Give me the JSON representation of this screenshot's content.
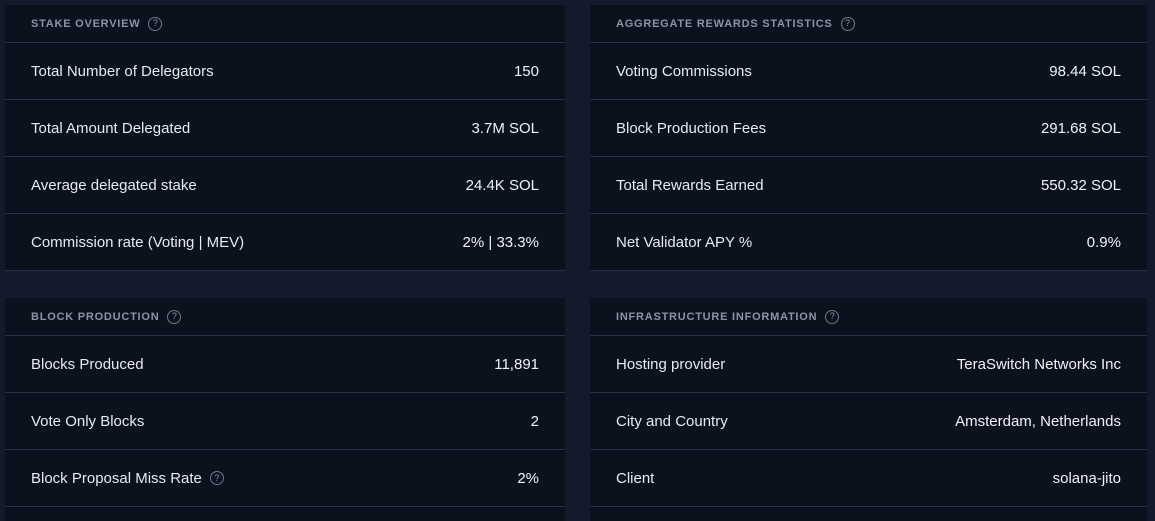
{
  "colors": {
    "page_background": "#141a2b",
    "panel_background": "#0c111e",
    "divider": "#273044",
    "header_text": "#8b94a7",
    "label_text": "#e7eaf0",
    "value_text": "#f0f2f7"
  },
  "icons": {
    "help": "?"
  },
  "panels": [
    {
      "title": "Stake Overview",
      "rows": [
        {
          "label": "Total Number of Delegators",
          "value": "150"
        },
        {
          "label": "Total Amount Delegated",
          "value": "3.7M SOL"
        },
        {
          "label": "Average delegated stake",
          "value": "24.4K SOL"
        },
        {
          "label": "Commission rate (Voting | MEV)",
          "value": "2% | 33.3%"
        }
      ]
    },
    {
      "title": "Aggregate Rewards Statistics",
      "rows": [
        {
          "label": "Voting Commissions",
          "value": "98.44 SOL"
        },
        {
          "label": "Block Production Fees",
          "value": "291.68 SOL"
        },
        {
          "label": "Total Rewards Earned",
          "value": "550.32 SOL"
        },
        {
          "label": "Net Validator APY %",
          "value": "0.9%"
        }
      ]
    },
    {
      "title": "Block Production",
      "rows": [
        {
          "label": "Blocks Produced",
          "value": "11,891"
        },
        {
          "label": "Vote Only Blocks",
          "value": "2"
        },
        {
          "label": "Block Proposal Miss Rate",
          "value": "2%",
          "has_help": true
        }
      ]
    },
    {
      "title": "Infrastructure Information",
      "rows": [
        {
          "label": "Hosting provider",
          "value": "TeraSwitch Networks Inc"
        },
        {
          "label": "City and Country",
          "value": "Amsterdam, Netherlands"
        },
        {
          "label": "Client",
          "value": "solana-jito"
        }
      ]
    }
  ]
}
